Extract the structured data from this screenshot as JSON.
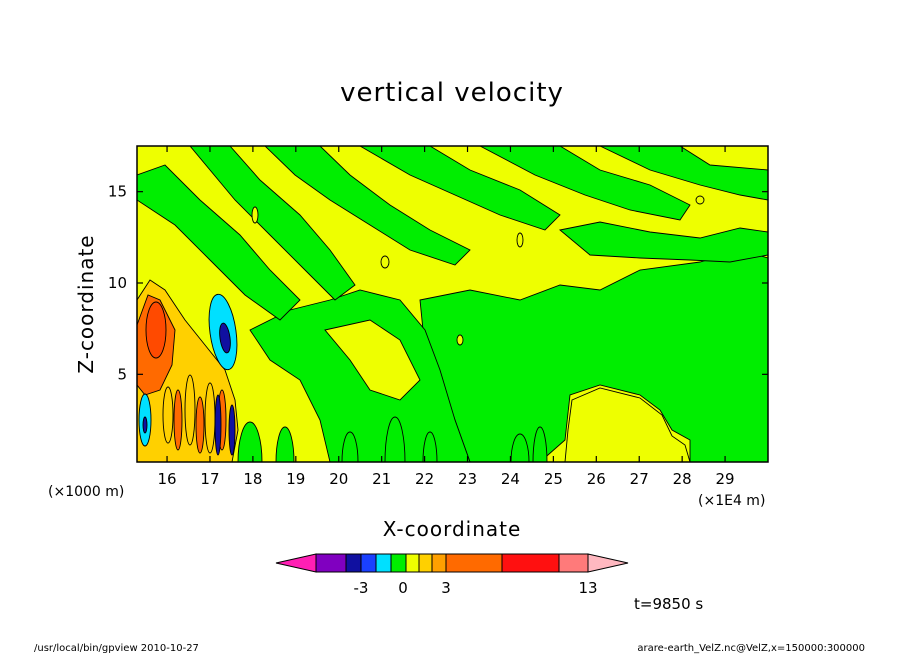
{
  "chart_data": {
    "type": "heatmap",
    "title": "vertical velocity",
    "xlabel": "X-coordinate",
    "ylabel": "Z-coordinate",
    "x_units_left": "(×1000 m)",
    "x_units_right": "(×1E4 m)",
    "xlim": [
      15.3,
      30.0
    ],
    "ylim": [
      0.2,
      17.5
    ],
    "x_ticks": [
      16,
      17,
      18,
      19,
      20,
      21,
      22,
      23,
      24,
      25,
      26,
      27,
      28,
      29
    ],
    "y_ticks": [
      5,
      10,
      15
    ],
    "grid": false,
    "time_label": "t=9850 s",
    "colorbar": {
      "labels": [
        {
          "value": -3,
          "text": "-3"
        },
        {
          "value": 0,
          "text": "0"
        },
        {
          "value": 3,
          "text": "3"
        },
        {
          "value": 13,
          "text": "13"
        }
      ],
      "colors": [
        "#ff1fb4",
        "#8000c0",
        "#1010a0",
        "#1a40ff",
        "#00e0ff",
        "#00ee00",
        "#eeff00",
        "#ffd000",
        "#ffa000",
        "#ff6a00",
        "#ff1010",
        "#ff7a7a",
        "#ffb8c0"
      ]
    },
    "levels_colors": {
      "strong_down": "#1010a0",
      "down": "#00e0ff",
      "weak_down": "#00ee00",
      "weak_up": "#eeff00",
      "up": "#ffd000",
      "strong_up": "#ff6a00"
    }
  },
  "footer": {
    "left": "/usr/local/bin/gpview   2010-10-27",
    "right": "arare-earth_VelZ.nc@VelZ,x=150000:300000"
  }
}
